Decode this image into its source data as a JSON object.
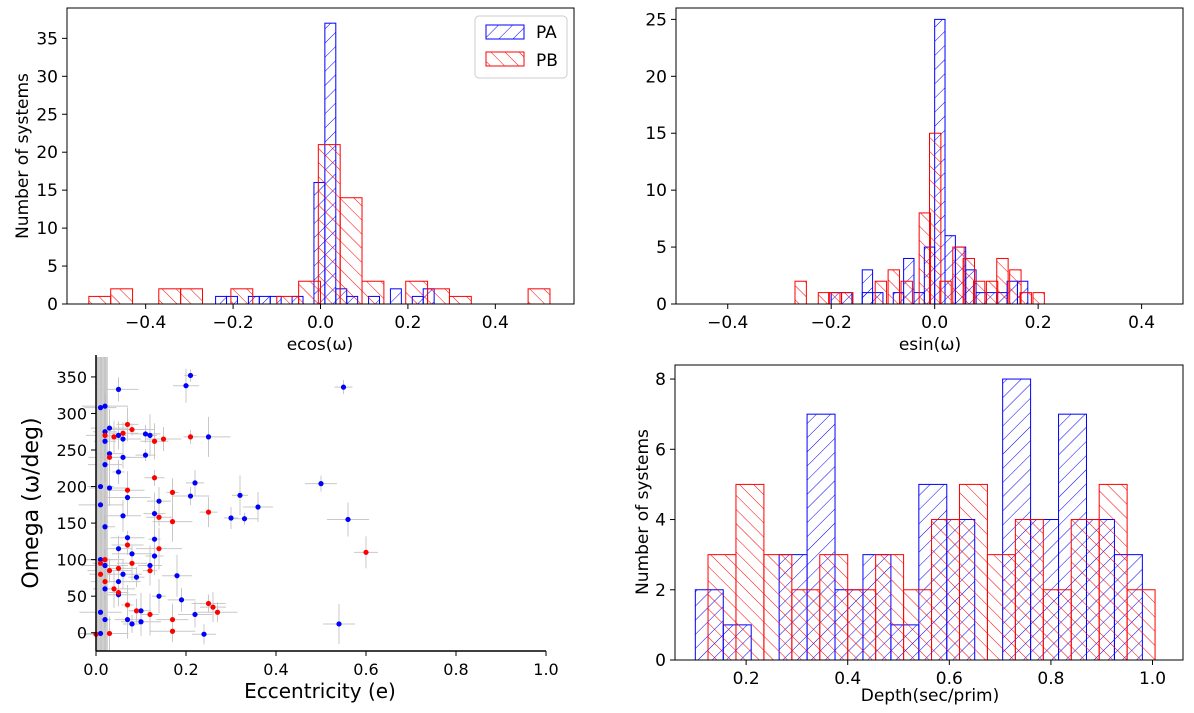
{
  "colors": {
    "pa": "#0000ff",
    "pb": "#ff0000",
    "axis": "#000000",
    "errorbar": "#c8c8c8"
  },
  "legend": {
    "entries": [
      "PA",
      "PB"
    ],
    "placement": "top-right"
  },
  "chart_data": [
    {
      "type": "histogram",
      "xlabel": "ecos(ω)",
      "ylabel": "Number of systems",
      "xlim": [
        -0.58,
        0.58
      ],
      "ylim": [
        0,
        39
      ],
      "xticks": [
        -0.4,
        -0.2,
        0.0,
        0.2,
        0.4
      ],
      "xtick_labels": [
        "−0.4",
        "−0.2",
        "0.0",
        "0.2",
        "0.4"
      ],
      "yticks": [
        0,
        5,
        10,
        15,
        20,
        25,
        30,
        35
      ],
      "ytick_labels": [
        "0",
        "5",
        "10",
        "15",
        "20",
        "25",
        "30",
        "35"
      ],
      "legend": true,
      "series": [
        {
          "name": "PA",
          "bin_width": 0.025,
          "bins": [
            [
              -0.24,
              1
            ],
            [
              -0.215,
              1
            ],
            [
              -0.165,
              1
            ],
            [
              -0.14,
              1
            ],
            [
              -0.115,
              1
            ],
            [
              -0.065,
              1
            ],
            [
              -0.015,
              16
            ],
            [
              0.01,
              37
            ],
            [
              0.035,
              2
            ],
            [
              0.06,
              1
            ],
            [
              0.11,
              1
            ],
            [
              0.16,
              2
            ],
            [
              0.21,
              1
            ],
            [
              0.235,
              2
            ]
          ]
        },
        {
          "name": "PB",
          "bin_width": 0.05,
          "bins": [
            [
              -0.53,
              1
            ],
            [
              -0.48,
              2
            ],
            [
              -0.37,
              2
            ],
            [
              -0.32,
              2
            ],
            [
              -0.205,
              2
            ],
            [
              -0.1,
              1
            ],
            [
              -0.05,
              3
            ],
            [
              -0.005,
              21
            ],
            [
              0.045,
              14
            ],
            [
              0.095,
              3
            ],
            [
              0.195,
              3
            ],
            [
              0.245,
              2
            ],
            [
              0.295,
              1
            ],
            [
              0.475,
              2
            ]
          ]
        }
      ]
    },
    {
      "type": "histogram",
      "xlabel": "esin(ω)",
      "ylabel": "",
      "xlim": [
        -0.5,
        0.48
      ],
      "ylim": [
        0,
        26
      ],
      "xticks": [
        -0.4,
        -0.2,
        0.0,
        0.2,
        0.4
      ],
      "xtick_labels": [
        "−0.4",
        "−0.2",
        "0.0",
        "0.2",
        "0.4"
      ],
      "yticks": [
        0,
        5,
        10,
        15,
        20,
        25
      ],
      "ytick_labels": [
        "0",
        "5",
        "10",
        "15",
        "20",
        "25"
      ],
      "series": [
        {
          "name": "PA",
          "bin_width": 0.02,
          "bins": [
            [
              -0.2,
              1
            ],
            [
              -0.18,
              1
            ],
            [
              -0.14,
              1
            ],
            [
              -0.14,
              3
            ],
            [
              -0.12,
              1
            ],
            [
              -0.08,
              1
            ],
            [
              -0.06,
              4
            ],
            [
              -0.04,
              1
            ],
            [
              -0.02,
              5
            ],
            [
              0.0,
              25
            ],
            [
              0.02,
              6
            ],
            [
              0.04,
              5
            ],
            [
              0.06,
              3
            ],
            [
              0.08,
              1
            ],
            [
              0.1,
              1
            ],
            [
              0.12,
              1
            ],
            [
              0.14,
              2
            ],
            [
              0.16,
              2
            ]
          ]
        },
        {
          "name": "PB",
          "bin_width": 0.022,
          "bins": [
            [
              -0.27,
              2
            ],
            [
              -0.225,
              1
            ],
            [
              -0.205,
              1
            ],
            [
              -0.18,
              1
            ],
            [
              -0.115,
              2
            ],
            [
              -0.09,
              3
            ],
            [
              -0.065,
              2
            ],
            [
              -0.03,
              8
            ],
            [
              -0.01,
              15
            ],
            [
              0.01,
              2
            ],
            [
              0.035,
              5
            ],
            [
              0.055,
              4
            ],
            [
              0.075,
              2
            ],
            [
              0.1,
              2
            ],
            [
              0.12,
              4
            ],
            [
              0.145,
              3
            ],
            [
              0.165,
              1
            ],
            [
              0.19,
              1
            ]
          ]
        }
      ]
    },
    {
      "type": "scatter",
      "xlabel": "Eccentricity (e)",
      "ylabel": "Omega (ω/deg)",
      "xlim": [
        0,
        1.0
      ],
      "ylim": [
        -25,
        380
      ],
      "xticks": [
        0.0,
        0.2,
        0.4,
        0.6,
        0.8,
        1.0
      ],
      "xtick_labels": [
        "0.0",
        "0.2",
        "0.4",
        "0.6",
        "0.8",
        "1.0"
      ],
      "yticks": [
        0,
        50,
        100,
        150,
        200,
        250,
        300,
        350
      ],
      "ytick_labels": [
        "0",
        "50",
        "100",
        "150",
        "200",
        "250",
        "300",
        "350"
      ],
      "series": [
        {
          "name": "PA",
          "points": [
            [
              0.21,
              352
            ],
            [
              0.2,
              338
            ],
            [
              0.05,
              333
            ],
            [
              0.55,
              336
            ],
            [
              0.01,
              308
            ],
            [
              0.02,
              310
            ],
            [
              0.02,
              275
            ],
            [
              0.03,
              280
            ],
            [
              0.05,
              270
            ],
            [
              0.11,
              272
            ],
            [
              0.25,
              268
            ],
            [
              0.02,
              262
            ],
            [
              0.06,
              265
            ],
            [
              0.12,
              270
            ],
            [
              0.03,
              245
            ],
            [
              0.06,
              240
            ],
            [
              0.11,
              243
            ],
            [
              0.02,
              230
            ],
            [
              0.05,
              220
            ],
            [
              0.01,
              200
            ],
            [
              0.03,
              198
            ],
            [
              0.22,
              205
            ],
            [
              0.5,
              204
            ],
            [
              0.07,
              185
            ],
            [
              0.14,
              180
            ],
            [
              0.21,
              187
            ],
            [
              0.32,
              188
            ],
            [
              0.36,
              172
            ],
            [
              0.01,
              175
            ],
            [
              0.13,
              163
            ],
            [
              0.06,
              160
            ],
            [
              0.3,
              157
            ],
            [
              0.33,
              156
            ],
            [
              0.56,
              155
            ],
            [
              0.02,
              145
            ],
            [
              0.07,
              130
            ],
            [
              0.13,
              128
            ],
            [
              0.05,
              115
            ],
            [
              0.08,
              108
            ],
            [
              0.13,
              105
            ],
            [
              0.01,
              100
            ],
            [
              0.02,
              92
            ],
            [
              0.12,
              92
            ],
            [
              0.06,
              80
            ],
            [
              0.09,
              76
            ],
            [
              0.18,
              78
            ],
            [
              0.05,
              70
            ],
            [
              0.02,
              60
            ],
            [
              0.05,
              52
            ],
            [
              0.14,
              50
            ],
            [
              0.19,
              45
            ],
            [
              0.01,
              28
            ],
            [
              0.1,
              30
            ],
            [
              0.22,
              25
            ],
            [
              0.02,
              18
            ],
            [
              0.07,
              18
            ],
            [
              0.1,
              15
            ],
            [
              0.08,
              12
            ],
            [
              0.54,
              12
            ],
            [
              0.01,
              -1
            ],
            [
              0.24,
              -2
            ]
          ]
        },
        {
          "name": "PB",
          "points": [
            [
              0.02,
              270
            ],
            [
              0.04,
              268
            ],
            [
              0.06,
              273
            ],
            [
              0.08,
              278
            ],
            [
              0.07,
              285
            ],
            [
              0.15,
              265
            ],
            [
              0.21,
              268
            ],
            [
              0.13,
              262
            ],
            [
              0.03,
              240
            ],
            [
              0.13,
              212
            ],
            [
              0.07,
              195
            ],
            [
              0.17,
              192
            ],
            [
              0.14,
              158
            ],
            [
              0.17,
              152
            ],
            [
              0.25,
              165
            ],
            [
              0.07,
              120
            ],
            [
              0.14,
              115
            ],
            [
              0.6,
              110
            ],
            [
              0.02,
              100
            ],
            [
              0.01,
              95
            ],
            [
              0.08,
              95
            ],
            [
              0.03,
              85
            ],
            [
              0.01,
              80
            ],
            [
              0.05,
              88
            ],
            [
              0.12,
              85
            ],
            [
              0.02,
              70
            ],
            [
              0.04,
              60
            ],
            [
              0.05,
              55
            ],
            [
              0.25,
              40
            ],
            [
              0.07,
              38
            ],
            [
              0.26,
              35
            ],
            [
              0.27,
              28
            ],
            [
              0.12,
              25
            ],
            [
              0.17,
              18
            ],
            [
              0.17,
              2
            ],
            [
              0.0,
              -2
            ],
            [
              0.03,
              -1
            ],
            [
              0.09,
              30
            ]
          ]
        }
      ]
    },
    {
      "type": "histogram",
      "xlabel": "Depth(sec/prim)",
      "ylabel": "Number of systems",
      "xlim": [
        0.06,
        1.06
      ],
      "ylim": [
        0,
        8.4
      ],
      "xticks": [
        0.2,
        0.4,
        0.6,
        0.8,
        1.0
      ],
      "xtick_labels": [
        "0.2",
        "0.4",
        "0.6",
        "0.8",
        "1.0"
      ],
      "yticks": [
        0,
        2,
        4,
        6,
        8
      ],
      "ytick_labels": [
        "0",
        "2",
        "4",
        "6",
        "8"
      ],
      "series": [
        {
          "name": "PA",
          "bin_width": 0.055,
          "bins": [
            [
              0.1,
              2
            ],
            [
              0.155,
              1
            ],
            [
              0.21,
              0
            ],
            [
              0.265,
              3
            ],
            [
              0.32,
              7
            ],
            [
              0.375,
              2
            ],
            [
              0.43,
              3
            ],
            [
              0.485,
              1
            ],
            [
              0.54,
              5
            ],
            [
              0.595,
              4
            ],
            [
              0.65,
              0
            ],
            [
              0.705,
              8
            ],
            [
              0.76,
              4
            ],
            [
              0.815,
              7
            ],
            [
              0.87,
              4
            ],
            [
              0.925,
              3
            ]
          ]
        },
        {
          "name": "PB",
          "bin_width": 0.055,
          "bins": [
            [
              0.125,
              3
            ],
            [
              0.18,
              5
            ],
            [
              0.235,
              3
            ],
            [
              0.29,
              2
            ],
            [
              0.345,
              3
            ],
            [
              0.4,
              2
            ],
            [
              0.455,
              3
            ],
            [
              0.51,
              2
            ],
            [
              0.565,
              4
            ],
            [
              0.62,
              5
            ],
            [
              0.675,
              3
            ],
            [
              0.73,
              4
            ],
            [
              0.785,
              2
            ],
            [
              0.84,
              4
            ],
            [
              0.895,
              5
            ],
            [
              0.95,
              2
            ]
          ]
        }
      ]
    }
  ]
}
